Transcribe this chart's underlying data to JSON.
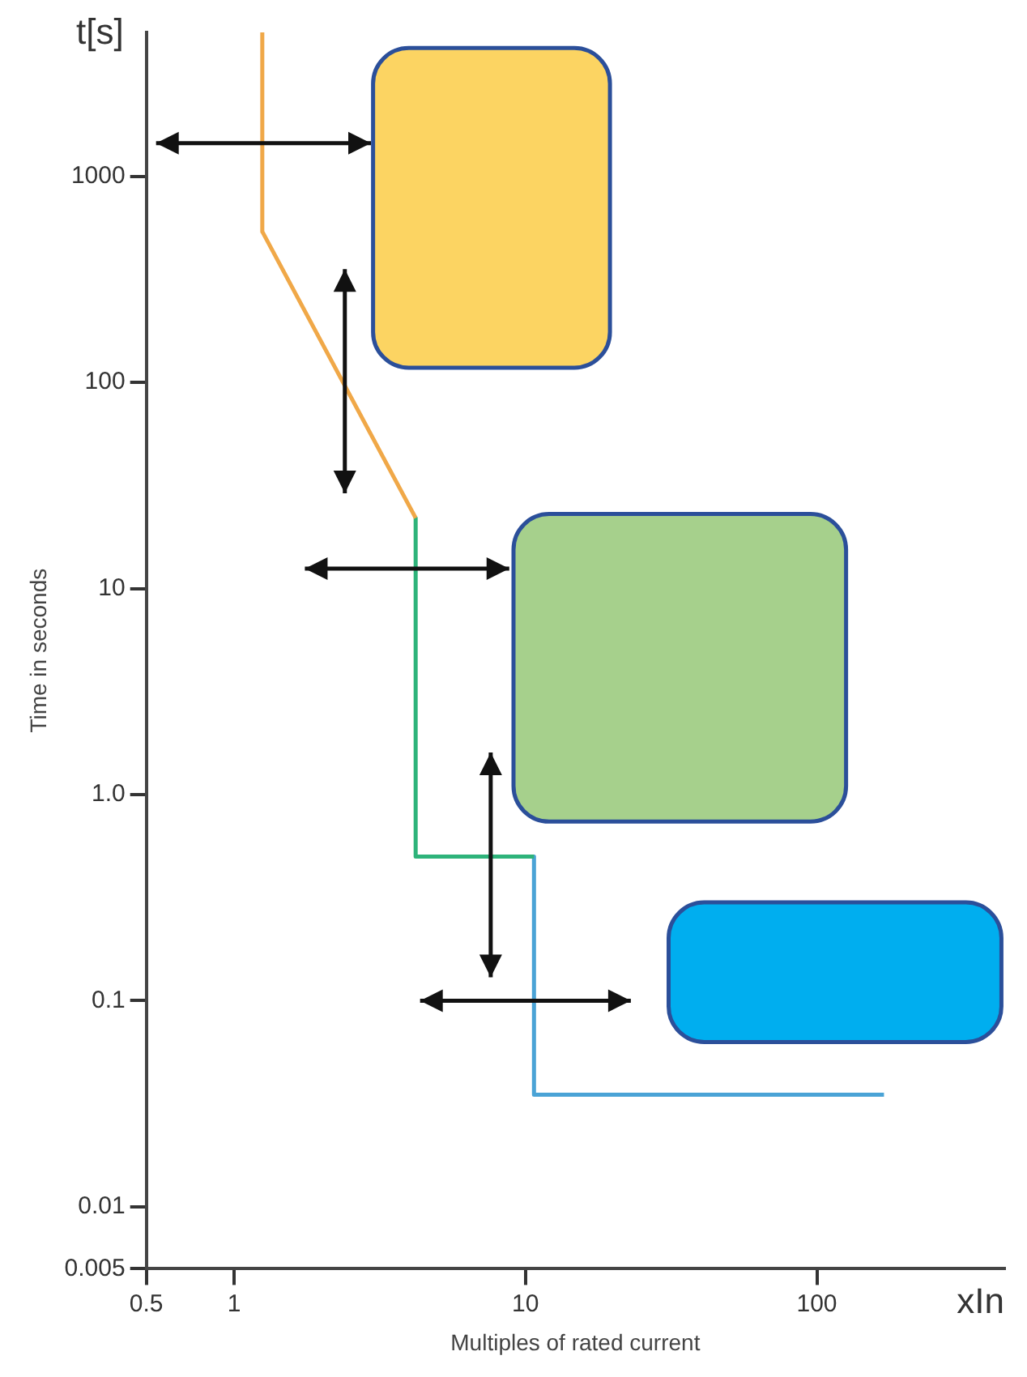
{
  "chart_data": {
    "type": "line",
    "xlabel": "Multiples of rated current",
    "ylabel": "Time in seconds",
    "annotations": [
      "t[s]",
      "xIn"
    ],
    "log": "xy",
    "grid": false,
    "legend": false,
    "marker": "none",
    "xlim": [
      0.5,
      440
    ],
    "xticks": [
      0.5,
      1,
      10,
      100
    ],
    "ylim": [
      0.005,
      5000
    ],
    "yticks": [
      0.005,
      0.01,
      0.1,
      {
        "value": 1,
        "label": "1.0"
      },
      10,
      100,
      1000
    ],
    "series": [
      {
        "color": "#f0a848",
        "x": [
          1.25,
          1.25,
          4.2
        ],
        "values": [
          5000,
          540,
          22
        ]
      },
      {
        "color": "#2eb37a",
        "x": [
          4.2,
          4.2,
          10.7
        ],
        "values": [
          22,
          0.5,
          0.5
        ]
      },
      {
        "color": "#4aa3d6",
        "x": [
          10.7,
          10.7,
          170
        ],
        "values": [
          0.5,
          0.035,
          0.035
        ]
      }
    ]
  }
}
